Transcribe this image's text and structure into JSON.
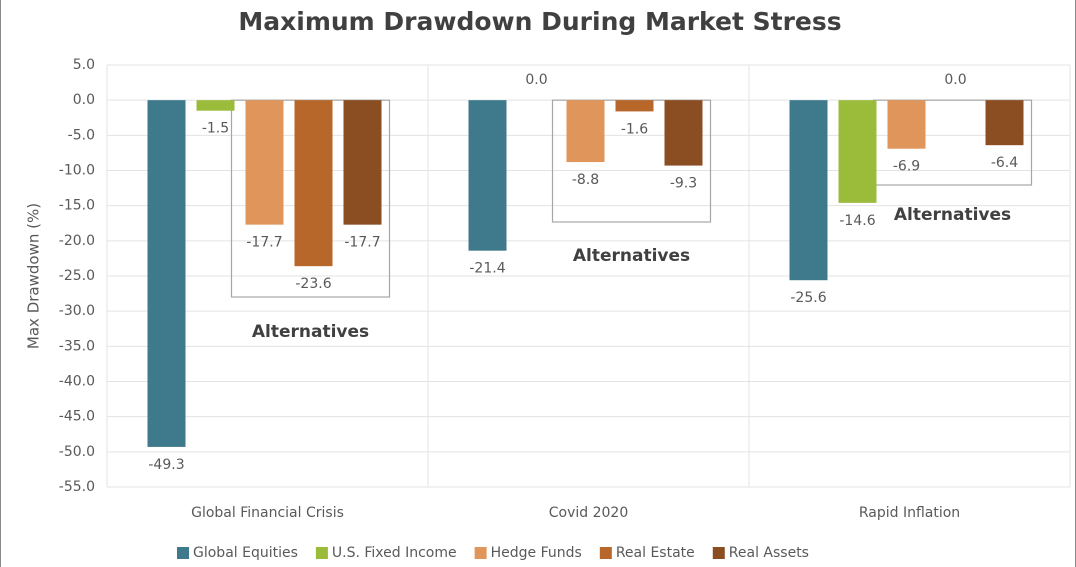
{
  "chart_data": {
    "type": "bar",
    "title": "Maximum Drawdown During Market Stress",
    "y_label": "Max Drawdown (%)",
    "categories": [
      "Global Financial Crisis",
      "Covid 2020",
      "Rapid Inflation"
    ],
    "series": [
      {
        "name": "Global Equities",
        "color": "#3f7a8c",
        "values": [
          -49.3,
          -21.4,
          -25.6
        ],
        "value_labels": [
          "-49.3",
          "-21.4",
          "-25.6"
        ]
      },
      {
        "name": "U.S. Fixed Income",
        "color": "#9bbb3b",
        "values": [
          -1.5,
          0.0,
          -14.6
        ],
        "value_labels": [
          "-1.5",
          "0.0",
          "-14.6"
        ]
      },
      {
        "name": "Hedge Funds",
        "color": "#e0955a",
        "values": [
          -17.7,
          -8.8,
          -6.9
        ],
        "value_labels": [
          "-17.7",
          "-8.8",
          "-6.9"
        ]
      },
      {
        "name": "Real Estate",
        "color": "#b8672a",
        "values": [
          -23.6,
          -1.6,
          0.0
        ],
        "value_labels": [
          "-23.6",
          "-1.6",
          "0.0"
        ]
      },
      {
        "name": "Real Assets",
        "color": "#8b4d22",
        "values": [
          -17.7,
          -9.3,
          -6.4
        ],
        "value_labels": [
          "-17.7",
          "-9.3",
          "-6.4"
        ]
      }
    ],
    "annotations": [
      "Alternatives",
      "Alternatives",
      "Alternatives"
    ],
    "ylim": [
      -55,
      5
    ],
    "yticks": [
      {
        "value": 5,
        "label": "5.0"
      },
      {
        "value": 0,
        "label": "0.0"
      },
      {
        "value": -5,
        "label": "-5.0"
      },
      {
        "value": -10,
        "label": "-10.0"
      },
      {
        "value": -15,
        "label": "-15.0"
      },
      {
        "value": -20,
        "label": "-20.0"
      },
      {
        "value": -25,
        "label": "-25.0"
      },
      {
        "value": -30,
        "label": "-30.0"
      },
      {
        "value": -35,
        "label": "-35.0"
      },
      {
        "value": -40,
        "label": "-40.0"
      },
      {
        "value": -45,
        "label": "-45.0"
      },
      {
        "value": -50,
        "label": "-50.0"
      },
      {
        "value": -55,
        "label": "-55.0"
      }
    ],
    "grid": true,
    "legend": "bottom"
  }
}
